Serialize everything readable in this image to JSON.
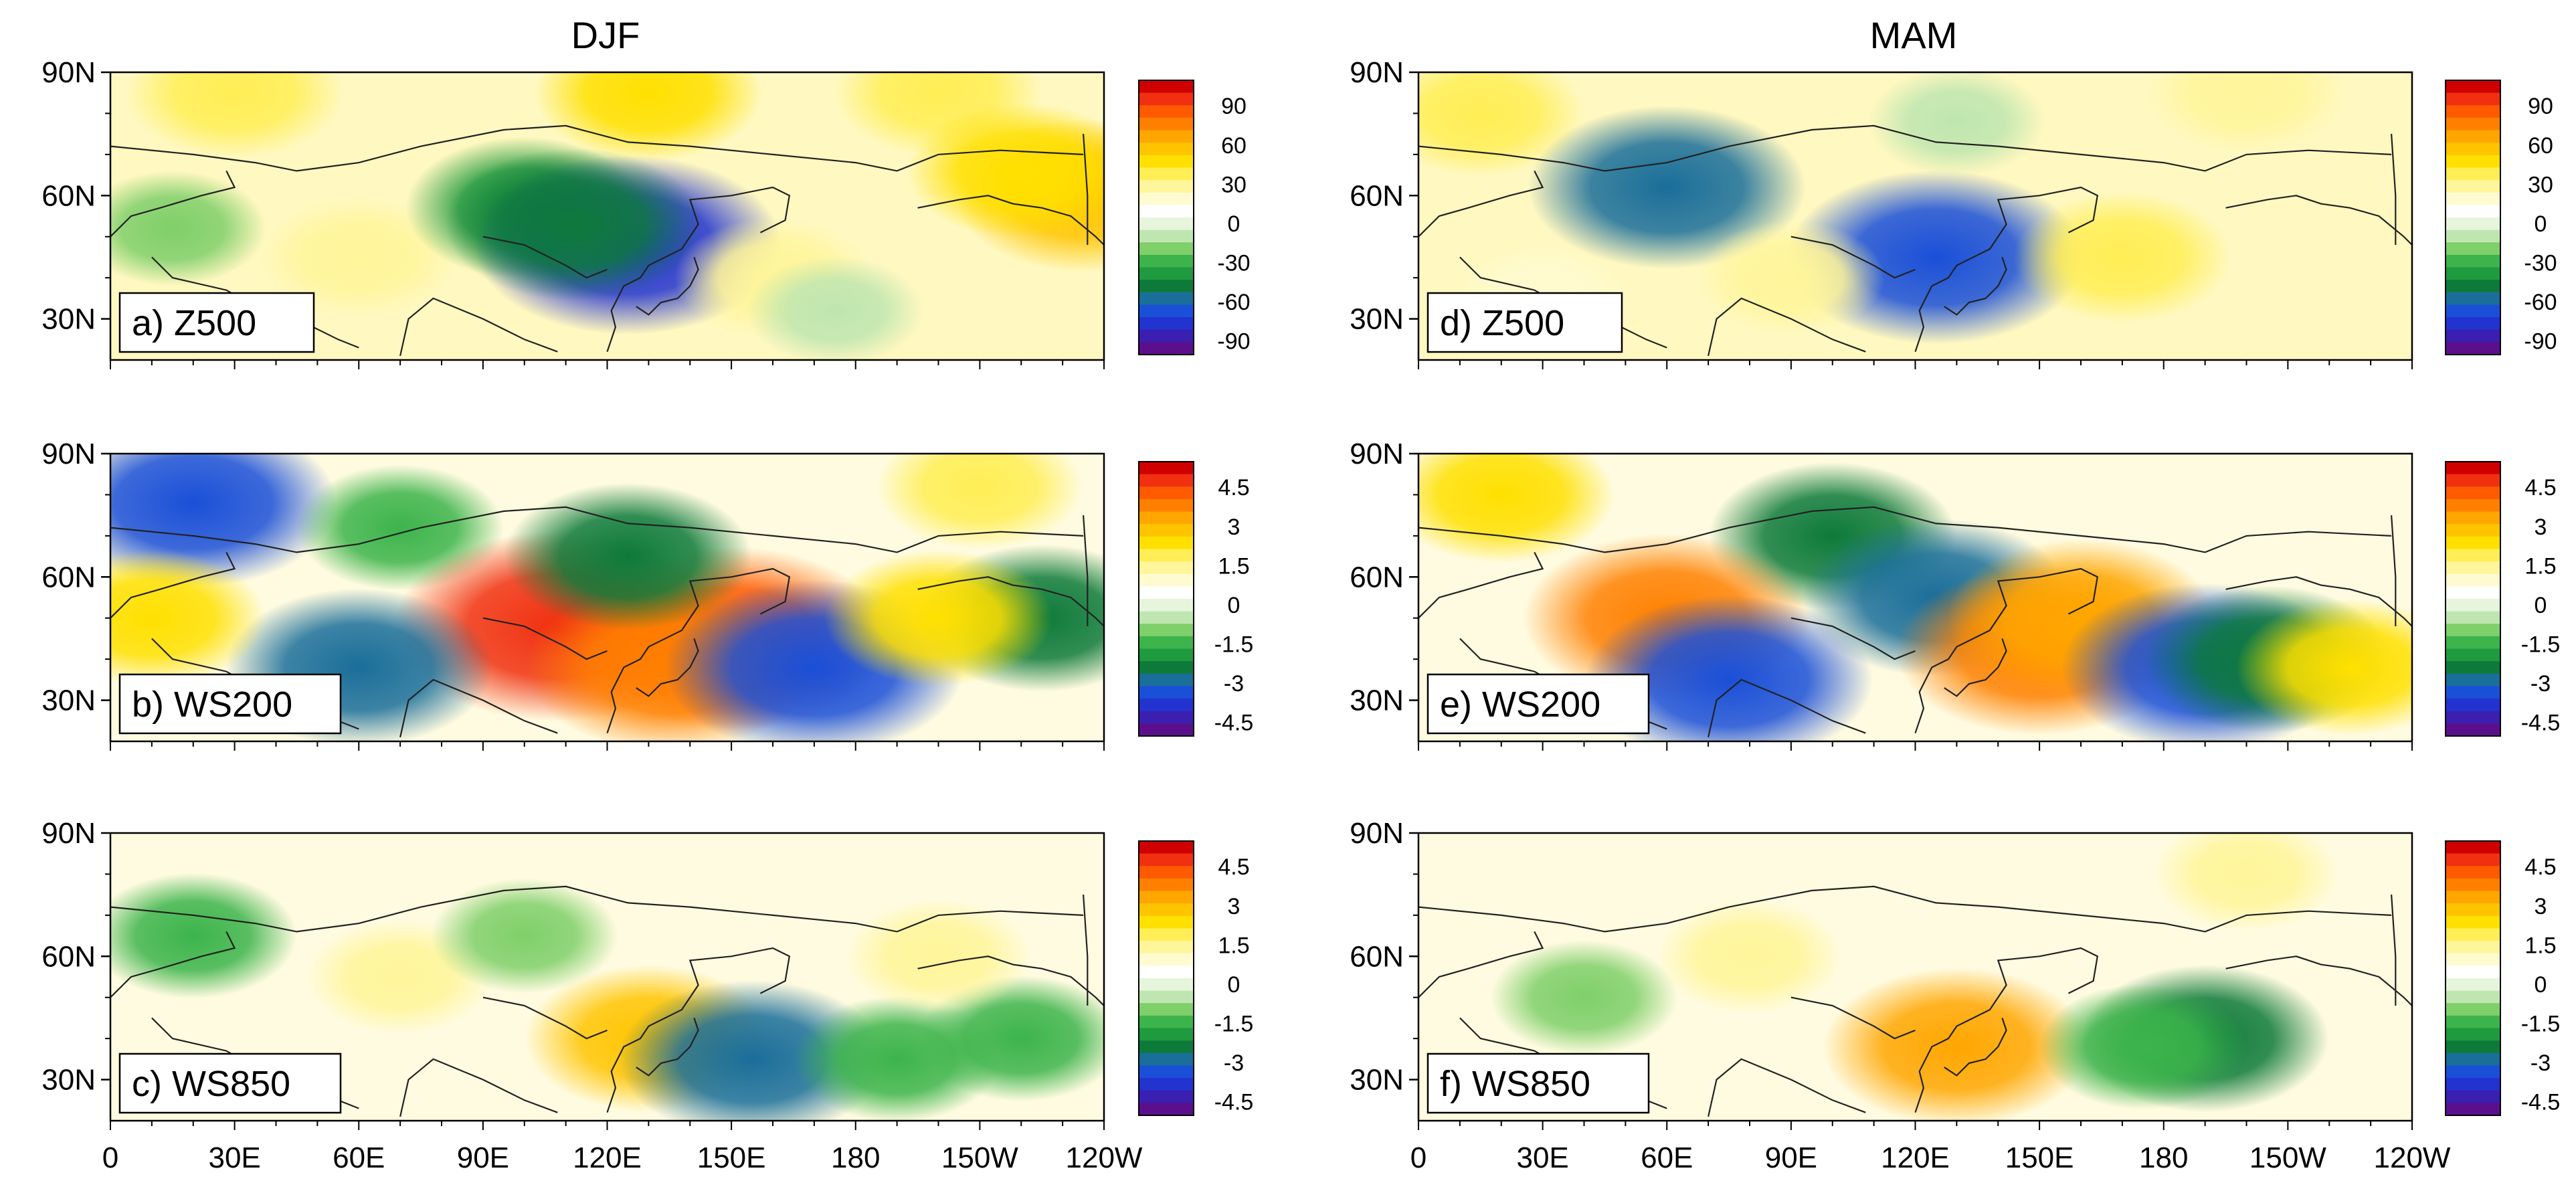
{
  "figure": {
    "column_titles": [
      "DJF",
      "MAM"
    ],
    "lat_ticks": [
      "90N",
      "60N",
      "30N"
    ],
    "lon_ticks": [
      "0",
      "30E",
      "60E",
      "90E",
      "120E",
      "150E",
      "180",
      "150W",
      "120W"
    ]
  },
  "panels": [
    {
      "id": "a",
      "label": "a) Z500",
      "variable": "Z500",
      "season": "DJF"
    },
    {
      "id": "b",
      "label": "b) WS200",
      "variable": "WS200",
      "season": "DJF"
    },
    {
      "id": "c",
      "label": "c) WS850",
      "variable": "WS850",
      "season": "DJF"
    },
    {
      "id": "d",
      "label": "d) Z500",
      "variable": "Z500",
      "season": "MAM"
    },
    {
      "id": "e",
      "label": "e) WS200",
      "variable": "WS200",
      "season": "MAM"
    },
    {
      "id": "f",
      "label": "f) WS850",
      "variable": "WS850",
      "season": "MAM"
    }
  ],
  "colorbars": {
    "z500": {
      "labels": [
        "90",
        "60",
        "30",
        "0",
        "-30",
        "-60",
        "-90"
      ],
      "range": [
        -100,
        100
      ]
    },
    "ws": {
      "labels": [
        "4.5",
        "3",
        "1.5",
        "0",
        "-1.5",
        "-3",
        "-4.5"
      ],
      "range": [
        -5,
        5
      ]
    }
  },
  "colors": {
    "palette": [
      "#5b0f8c",
      "#3a1fb0",
      "#2233d0",
      "#1a4fd8",
      "#1a6e9a",
      "#0d7a3a",
      "#1f9a3e",
      "#3cb44b",
      "#7fcf6a",
      "#bfe6b0",
      "#e6f5dc",
      "#ffffff",
      "#fffbd0",
      "#fff59a",
      "#ffee55",
      "#ffe000",
      "#ffc400",
      "#ffa600",
      "#ff8000",
      "#ff5a00",
      "#f03010",
      "#d00000"
    ]
  },
  "chart_data": {
    "type": "heatmap",
    "title": "",
    "x_axis": {
      "range": [
        0,
        240
      ],
      "units": "degrees longitude east of 0",
      "ticks": [
        "0",
        "30E",
        "60E",
        "90E",
        "120E",
        "150E",
        "180",
        "150W",
        "120W"
      ]
    },
    "y_axis": {
      "range": [
        20,
        90
      ],
      "units": "degrees latitude",
      "ticks": [
        "30N",
        "60N",
        "90N"
      ]
    },
    "panels": [
      {
        "id": "a",
        "label": "a) Z500",
        "value_range": [
          -100,
          100
        ],
        "features": [
          {
            "lon": 30,
            "lat": 85,
            "value": 35
          },
          {
            "lon": 130,
            "lat": 85,
            "value": 40
          },
          {
            "lon": 200,
            "lat": 85,
            "value": 30
          },
          {
            "lon": 235,
            "lat": 60,
            "value": 55
          },
          {
            "lon": 220,
            "lat": 66,
            "value": 40
          },
          {
            "lon": 60,
            "lat": 45,
            "value": 25
          },
          {
            "lon": 100,
            "lat": 57,
            "value": -45
          },
          {
            "lon": 125,
            "lat": 48,
            "value": -80
          },
          {
            "lon": 112,
            "lat": 53,
            "value": -55
          },
          {
            "lon": 160,
            "lat": 40,
            "value": 25
          },
          {
            "lon": 15,
            "lat": 52,
            "value": -20
          },
          {
            "lon": 175,
            "lat": 32,
            "value": -15
          }
        ]
      },
      {
        "id": "b",
        "label": "b) WS200",
        "value_range": [
          -5,
          5
        ],
        "features": [
          {
            "lon": 20,
            "lat": 78,
            "value": -3.5
          },
          {
            "lon": 70,
            "lat": 72,
            "value": -1.5
          },
          {
            "lon": 108,
            "lat": 48,
            "value": 4.5
          },
          {
            "lon": 150,
            "lat": 45,
            "value": 4.2
          },
          {
            "lon": 135,
            "lat": 38,
            "value": 3.5
          },
          {
            "lon": 60,
            "lat": 38,
            "value": -3.0
          },
          {
            "lon": 170,
            "lat": 38,
            "value": -3.8
          },
          {
            "lon": 125,
            "lat": 65,
            "value": -2.5
          },
          {
            "lon": 225,
            "lat": 50,
            "value": -2.5
          },
          {
            "lon": 200,
            "lat": 50,
            "value": 2.0
          },
          {
            "lon": 210,
            "lat": 82,
            "value": 1.5
          },
          {
            "lon": 10,
            "lat": 50,
            "value": 2.0
          }
        ]
      },
      {
        "id": "c",
        "label": "c) WS850",
        "value_range": [
          -5,
          5
        ],
        "features": [
          {
            "lon": 130,
            "lat": 40,
            "value": 2.5
          },
          {
            "lon": 155,
            "lat": 35,
            "value": -3.0
          },
          {
            "lon": 20,
            "lat": 65,
            "value": -1.5
          },
          {
            "lon": 70,
            "lat": 55,
            "value": 1.0
          },
          {
            "lon": 100,
            "lat": 65,
            "value": -1.0
          },
          {
            "lon": 190,
            "lat": 35,
            "value": -1.5
          },
          {
            "lon": 220,
            "lat": 40,
            "value": -1.5
          },
          {
            "lon": 200,
            "lat": 60,
            "value": 1.0
          }
        ]
      },
      {
        "id": "d",
        "label": "d) Z500",
        "value_range": [
          -100,
          100
        ],
        "features": [
          {
            "lon": 15,
            "lat": 80,
            "value": 30
          },
          {
            "lon": 60,
            "lat": 62,
            "value": -65
          },
          {
            "lon": 125,
            "lat": 45,
            "value": -75
          },
          {
            "lon": 170,
            "lat": 45,
            "value": 35
          },
          {
            "lon": 200,
            "lat": 85,
            "value": 25
          },
          {
            "lon": 90,
            "lat": 40,
            "value": 20
          },
          {
            "lon": 30,
            "lat": 35,
            "value": 15
          },
          {
            "lon": 130,
            "lat": 78,
            "value": -15
          }
        ]
      },
      {
        "id": "e",
        "label": "e) WS200",
        "value_range": [
          -5,
          5
        ],
        "features": [
          {
            "lon": 100,
            "lat": 70,
            "value": -2.5
          },
          {
            "lon": 125,
            "lat": 55,
            "value": -3.0
          },
          {
            "lon": 60,
            "lat": 50,
            "value": 3.5
          },
          {
            "lon": 150,
            "lat": 42,
            "value": 3.5
          },
          {
            "lon": 160,
            "lat": 50,
            "value": 3.0
          },
          {
            "lon": 75,
            "lat": 35,
            "value": -3.5
          },
          {
            "lon": 190,
            "lat": 38,
            "value": -3.5
          },
          {
            "lon": 205,
            "lat": 40,
            "value": -2.5
          },
          {
            "lon": 225,
            "lat": 38,
            "value": 2.0
          },
          {
            "lon": 20,
            "lat": 80,
            "value": 2.0
          }
        ]
      },
      {
        "id": "f",
        "label": "f) WS850",
        "value_range": [
          -5,
          5
        ],
        "features": [
          {
            "lon": 130,
            "lat": 38,
            "value": 3.0
          },
          {
            "lon": 190,
            "lat": 40,
            "value": -2.5
          },
          {
            "lon": 175,
            "lat": 38,
            "value": -1.5
          },
          {
            "lon": 80,
            "lat": 60,
            "value": 1.0
          },
          {
            "lon": 40,
            "lat": 50,
            "value": -1.0
          },
          {
            "lon": 200,
            "lat": 80,
            "value": 1.0
          }
        ]
      }
    ]
  }
}
